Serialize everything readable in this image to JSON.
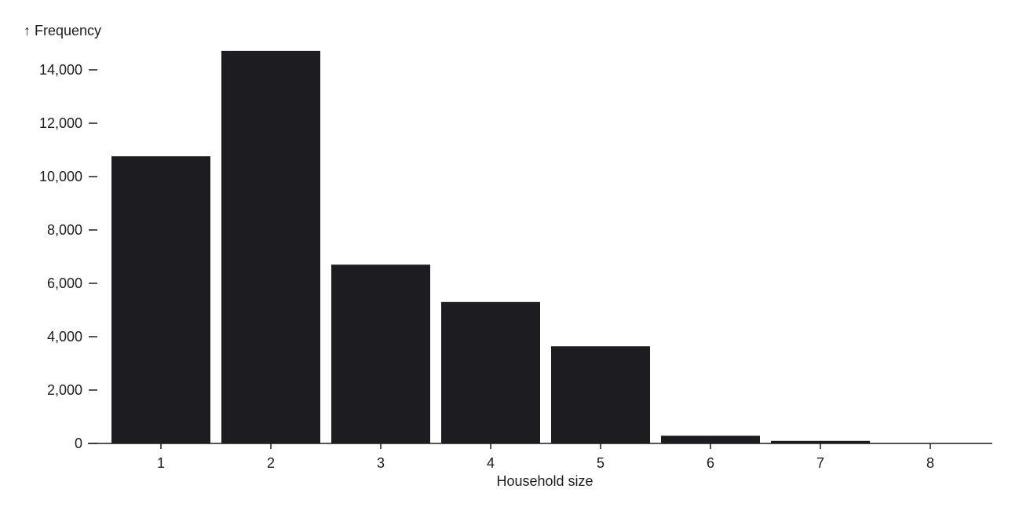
{
  "chart_data": {
    "type": "bar",
    "categories": [
      "1",
      "2",
      "3",
      "4",
      "5",
      "6",
      "7",
      "8"
    ],
    "values": [
      10760,
      14710,
      6700,
      5300,
      3640,
      290,
      95,
      10
    ],
    "xlabel": "Household size",
    "ylabel": "↑ Frequency",
    "ylim": [
      0,
      14000
    ],
    "yticks": [
      0,
      2000,
      4000,
      6000,
      8000,
      10000,
      12000,
      14000
    ],
    "ytick_labels": [
      "0",
      "2,000",
      "4,000",
      "6,000",
      "8,000",
      "10,000",
      "12,000",
      "14,000"
    ],
    "grid": false,
    "legend": "none",
    "bar_color": "#1d1d21"
  }
}
